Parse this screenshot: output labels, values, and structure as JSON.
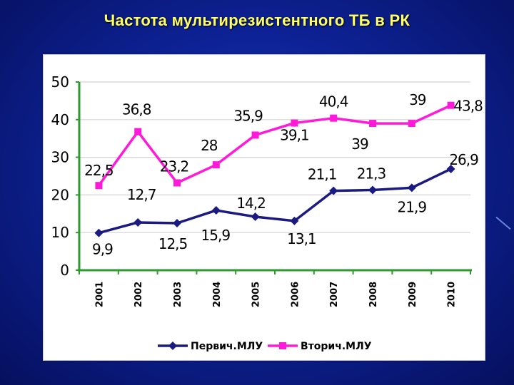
{
  "title": "Частота мультирезистентного ТБ  в РК",
  "colors": {
    "series1": "#1a1a80",
    "series2": "#ff1ad9",
    "grid": "#d3d3d3",
    "axis": "#2e9a2e"
  },
  "chart_data": {
    "type": "line",
    "categories": [
      "2001",
      "2002",
      "2003",
      "2004",
      "2005",
      "2006",
      "2007",
      "2008",
      "2009",
      "2010"
    ],
    "ylim": [
      0,
      50
    ],
    "yticks": [
      0,
      10,
      20,
      30,
      40,
      50
    ],
    "grid": true,
    "legend": "bottom",
    "series": [
      {
        "name": "Первич.МЛУ",
        "values": [
          9.9,
          12.7,
          12.5,
          15.9,
          14.2,
          13.1,
          21.1,
          21.3,
          21.9,
          26.9
        ],
        "labels": [
          "9,9",
          "12,7",
          "12,5",
          "15,9",
          "14,2",
          "13,1",
          "21,1",
          "21,3",
          "21,9",
          "26,9"
        ]
      },
      {
        "name": "Вторич.МЛУ",
        "values": [
          22.5,
          36.8,
          23.2,
          28,
          35.9,
          39.1,
          40.4,
          39,
          39,
          43.8
        ],
        "labels": [
          "22,5",
          "36,8",
          "23,2",
          "28",
          "35,9",
          "39,1",
          "40,4",
          "39",
          "39",
          "43,8"
        ]
      }
    ]
  }
}
